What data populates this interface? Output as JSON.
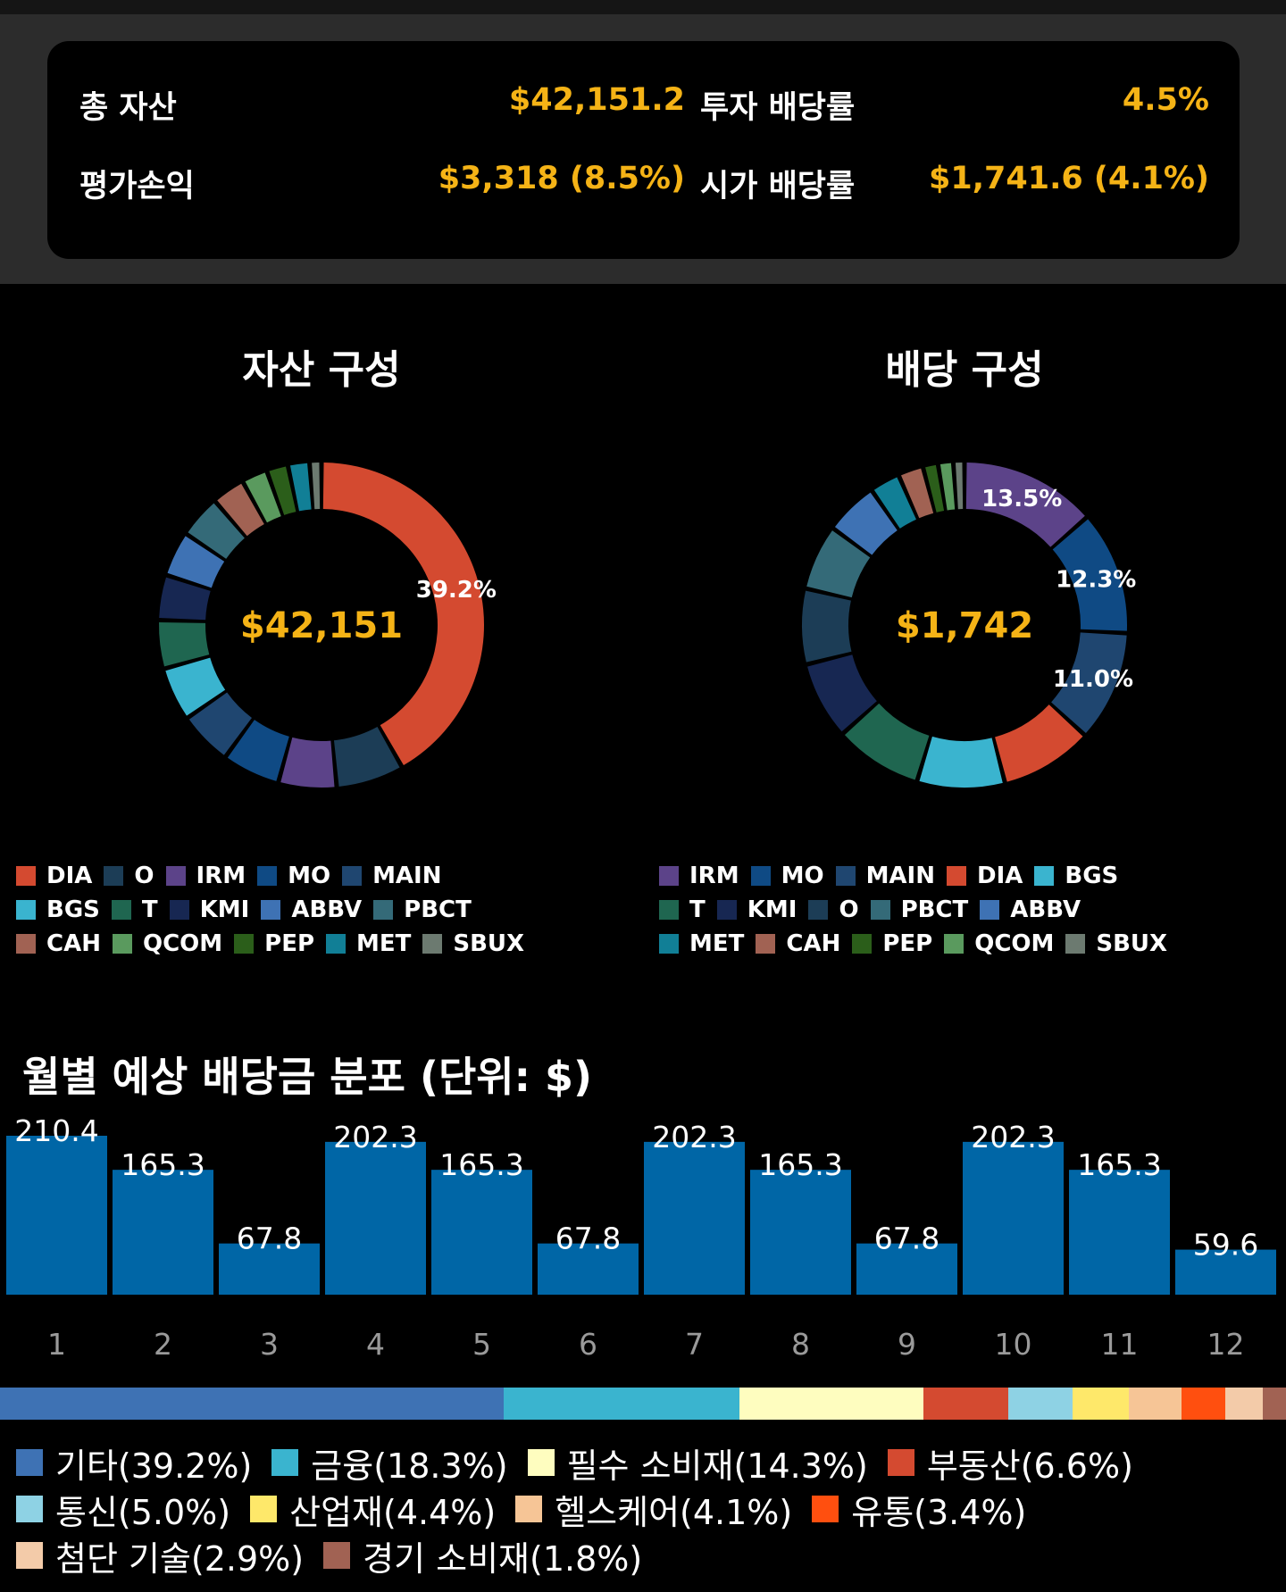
{
  "summary": {
    "total_assets_label": "총 자산",
    "total_assets_value": "$42,151.2",
    "investment_yield_label": "투자 배당률",
    "investment_yield_value": "4.5%",
    "unrealized_pl_label": "평가손익",
    "unrealized_pl_value": "$3,318 (8.5%)",
    "market_yield_label": "시가 배당률",
    "market_yield_value": "$1,741.6 (4.1%)"
  },
  "asset_chart": {
    "title": "자산 구성",
    "center_value": "$42,151",
    "slices": [
      {
        "name": "DIA",
        "value": 39.2,
        "color": "#d44a30",
        "label": "39.2%"
      },
      {
        "name": "O",
        "value": 6.3,
        "color": "#1c3d56"
      },
      {
        "name": "IRM",
        "value": 5.4,
        "color": "#5c4389"
      },
      {
        "name": "MO",
        "value": 5.4,
        "color": "#0f4a84"
      },
      {
        "name": "MAIN",
        "value": 5.0,
        "color": "#1f4670"
      },
      {
        "name": "BGS",
        "value": 5.0,
        "color": "#3ab4cf"
      },
      {
        "name": "T",
        "value": 4.5,
        "color": "#1f6650"
      },
      {
        "name": "KMI",
        "value": 4.2,
        "color": "#172752"
      },
      {
        "name": "ABBV",
        "value": 4.2,
        "color": "#3e72b4"
      },
      {
        "name": "PBCT",
        "value": 4.0,
        "color": "#346a78"
      },
      {
        "name": "CAH",
        "value": 3.1,
        "color": "#a16253"
      },
      {
        "name": "QCOM",
        "value": 2.4,
        "color": "#5a9a5e"
      },
      {
        "name": "PEP",
        "value": 2.0,
        "color": "#2b5e1a"
      },
      {
        "name": "MET",
        "value": 2.0,
        "color": "#117f96"
      },
      {
        "name": "SBUX",
        "value": 1.1,
        "color": "#6c7a70"
      }
    ]
  },
  "dividend_chart": {
    "title": "배당 구성",
    "center_value": "$1,742",
    "slices": [
      {
        "name": "IRM",
        "value": 13.5,
        "color": "#5c4389",
        "label": "13.5%"
      },
      {
        "name": "MO",
        "value": 12.3,
        "color": "#0f4a84",
        "label": "12.3%"
      },
      {
        "name": "MAIN",
        "value": 11.0,
        "color": "#1f4670",
        "label": "11.0%"
      },
      {
        "name": "DIA",
        "value": 9.2,
        "color": "#d44a30"
      },
      {
        "name": "BGS",
        "value": 8.7,
        "color": "#3ab4cf"
      },
      {
        "name": "T",
        "value": 8.7,
        "color": "#1f6650"
      },
      {
        "name": "KMI",
        "value": 7.7,
        "color": "#172752"
      },
      {
        "name": "O",
        "value": 7.5,
        "color": "#1c3d56"
      },
      {
        "name": "PBCT",
        "value": 6.5,
        "color": "#346a78"
      },
      {
        "name": "ABBV",
        "value": 5.3,
        "color": "#3e72b4"
      },
      {
        "name": "MET",
        "value": 3.0,
        "color": "#117f96"
      },
      {
        "name": "CAH",
        "value": 2.5,
        "color": "#a16253"
      },
      {
        "name": "PEP",
        "value": 1.5,
        "color": "#2b5e1a"
      },
      {
        "name": "QCOM",
        "value": 1.5,
        "color": "#5a9a5e"
      },
      {
        "name": "SBUX",
        "value": 1.1,
        "color": "#6c7a70"
      }
    ]
  },
  "asset_legend": [
    [
      "DIA",
      "O",
      "IRM",
      "MO",
      "MAIN"
    ],
    [
      "BGS",
      "T",
      "KMI",
      "ABBV",
      "PBCT"
    ],
    [
      "CAH",
      "QCOM",
      "PEP",
      "MET",
      "SBUX"
    ]
  ],
  "dividend_legend": [
    [
      "IRM",
      "MO",
      "MAIN",
      "DIA",
      "BGS"
    ],
    [
      "T",
      "KMI",
      "O",
      "PBCT",
      "ABBV"
    ],
    [
      "MET",
      "CAH",
      "PEP",
      "QCOM",
      "SBUX"
    ]
  ],
  "monthly": {
    "title": "월별 예상 배당금 분포 (단위: $)"
  },
  "chart_data": {
    "type": "bar",
    "title": "월별 예상 배당금 분포 (단위: $)",
    "categories": [
      "1",
      "2",
      "3",
      "4",
      "5",
      "6",
      "7",
      "8",
      "9",
      "10",
      "11",
      "12"
    ],
    "values": [
      210.4,
      165.3,
      67.8,
      202.3,
      165.3,
      67.8,
      202.3,
      165.3,
      67.8,
      202.3,
      165.3,
      59.6
    ],
    "value_labels": [
      "210.4",
      "165.3",
      "67.8",
      "202.3",
      "165.3",
      "67.8",
      "202.3",
      "165.3",
      "67.8",
      "202.3",
      "165.3",
      "59.6"
    ],
    "bar_color": "#0066a6",
    "ylim": [
      0,
      210.4
    ],
    "grid": false
  },
  "sectors": [
    {
      "label": "기타(39.2%)",
      "value": 39.2,
      "color": "#3e72b4"
    },
    {
      "label": "금융(18.3%)",
      "value": 18.3,
      "color": "#3ab4cf"
    },
    {
      "label": "필수 소비재(14.3%)",
      "value": 14.3,
      "color": "#fefdbf"
    },
    {
      "label": "부동산(6.6%)",
      "value": 6.6,
      "color": "#d44a30"
    },
    {
      "label": "통신(5.0%)",
      "value": 5.0,
      "color": "#8ed2e4"
    },
    {
      "label": "산업재(4.4%)",
      "value": 4.4,
      "color": "#fee86a"
    },
    {
      "label": "헬스케어(4.1%)",
      "value": 4.1,
      "color": "#f6c596"
    },
    {
      "label": "유통(3.4%)",
      "value": 3.4,
      "color": "#ff4f0f"
    },
    {
      "label": "첨단 기술(2.9%)",
      "value": 2.9,
      "color": "#f3cba9"
    },
    {
      "label": "경기 소비재(1.8%)",
      "value": 1.8,
      "color": "#a16253"
    }
  ],
  "sector_legend_rows": [
    [
      0,
      1,
      2,
      3
    ],
    [
      4,
      5,
      6,
      7
    ],
    [
      8,
      9
    ]
  ]
}
